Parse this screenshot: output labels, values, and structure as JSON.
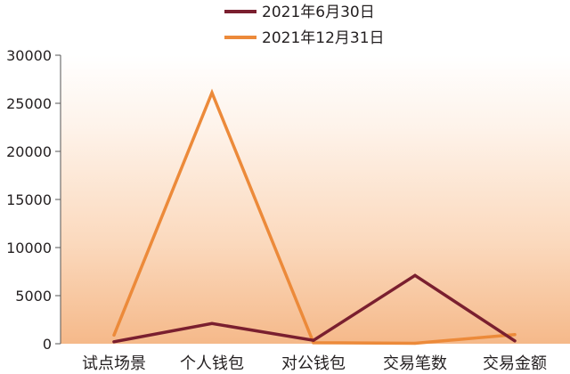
{
  "chart_data": {
    "type": "line",
    "title": "",
    "xlabel": "",
    "ylabel": "",
    "categories": [
      "试点场景",
      "个人钱包",
      "对公钱包",
      "交易笔数",
      "交易金额"
    ],
    "ylim": [
      0,
      30000
    ],
    "yticks": [
      0,
      5000,
      10000,
      15000,
      20000,
      25000,
      30000
    ],
    "grid": false,
    "legend_position": "top-center",
    "background": "gradient peach (bottom) to white (top)",
    "series": [
      {
        "name": "2021年6月30日",
        "color": "#7a1f2f",
        "values": [
          200,
          2100,
          350,
          7100,
          300
        ]
      },
      {
        "name": "2021年12月31日",
        "color": "#ec8a3a",
        "values": [
          900,
          26100,
          100,
          50,
          950
        ]
      }
    ]
  }
}
